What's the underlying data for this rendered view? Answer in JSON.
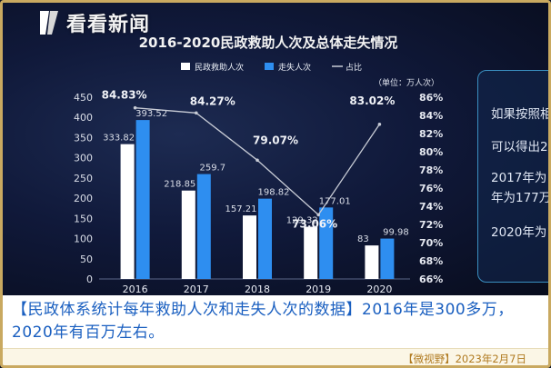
{
  "logo": {
    "text": "看看新闻"
  },
  "chart_data": {
    "type": "bar",
    "title": "2016-2020民政救助人次及总体走失情况",
    "unit_note": "（单位：万人次）",
    "legend_position": "top",
    "categories": [
      "2016",
      "2017",
      "2018",
      "2019",
      "2020"
    ],
    "series": [
      {
        "name": "民政救助人次",
        "type": "bar",
        "color": "#ffffff",
        "values": [
          333.82,
          218.85,
          157.21,
          129.32,
          83
        ],
        "labels": [
          "333.82",
          "218.85",
          "157.21",
          "129.32",
          "83"
        ]
      },
      {
        "name": "走失人次",
        "type": "bar",
        "color": "#2e8ef0",
        "values": [
          393.52,
          259.7,
          198.82,
          177.01,
          99.98
        ],
        "labels": [
          "393.52",
          "259.7",
          "198.82",
          "177.01",
          "99.98"
        ]
      },
      {
        "name": "占比",
        "type": "line",
        "axis": "right",
        "color": "#c8ccd6",
        "values": [
          84.83,
          84.27,
          79.07,
          73.06,
          83.02
        ],
        "labels": [
          "84.83%",
          "84.27%",
          "79.07%",
          "73.06%",
          "83.02%"
        ]
      }
    ],
    "left_axis": {
      "ticks": [
        "0",
        "50",
        "100",
        "150",
        "200",
        "250",
        "300",
        "350",
        "400",
        "450"
      ],
      "ylim": [
        0,
        450
      ]
    },
    "right_axis": {
      "ticks": [
        "66%",
        "68%",
        "70%",
        "72%",
        "74%",
        "76%",
        "78%",
        "80%",
        "82%",
        "84%",
        "86%"
      ],
      "ylim": [
        66,
        86
      ]
    }
  },
  "side_panel": {
    "lines": [
      "如果按照相",
      "可以得出2",
      "2017年为",
      "年为177万",
      "2020年为"
    ]
  },
  "caption": {
    "text": "【民政体系统计每年救助人次和走失人次的数据】2016年是300多万，2020年有百万左右。"
  },
  "footer": {
    "text": "【微视野】2023年2月7日"
  },
  "colors": {
    "accent_blue": "#2e8ef0",
    "caption_blue": "#1a5fc0",
    "frame_gold": "#c9a960",
    "footer_gold": "#b07a20"
  }
}
